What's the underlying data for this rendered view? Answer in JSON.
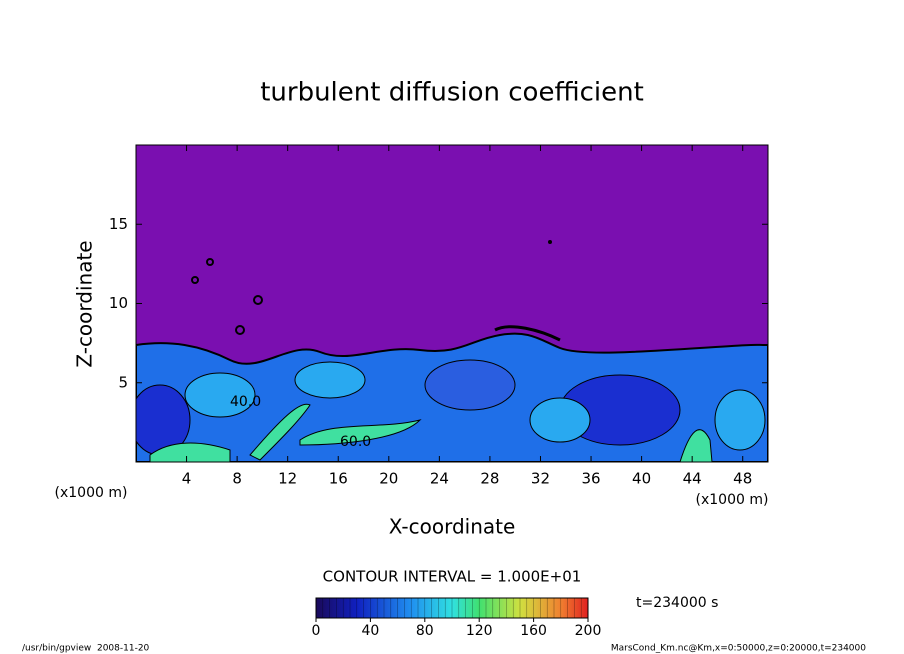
{
  "chart_data": {
    "type": "contour",
    "title": "turbulent diffusion coefficient",
    "xlabel": "X-coordinate",
    "ylabel": "Z-coordinate",
    "x_unit_label": "(x1000 m)",
    "xlim": [
      0,
      50
    ],
    "xticks": [
      4,
      8,
      12,
      16,
      20,
      24,
      28,
      32,
      36,
      40,
      44,
      48
    ],
    "ylim": [
      0,
      20
    ],
    "yticks": [
      5,
      10,
      15
    ],
    "colorbar": {
      "lim": [
        0,
        200
      ],
      "ticks": [
        0,
        40,
        80,
        120,
        160,
        200
      ]
    },
    "contour_interval_label": "CONTOUR INTERVAL = 1.000E+01",
    "time_label": "t=234000 s",
    "contour_labels": [
      "40.0",
      "60.0"
    ],
    "footer_left": "/usr/bin/gpview  2008-11-20",
    "footer_right": "MarsCond_Km.nc@Km,x=0:50000,z=0:20000,t=234000"
  }
}
